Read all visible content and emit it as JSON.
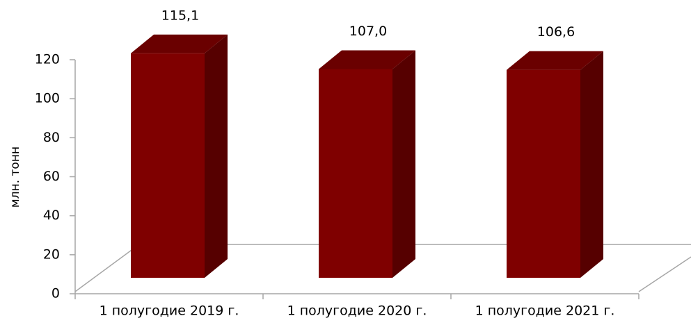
{
  "chart_data": {
    "type": "bar3d",
    "y_label": "млн. тонн",
    "categories": [
      "1 полугодие 2019 г.",
      "1 полугодие 2020 г.",
      "1 полугодие 2021 г."
    ],
    "values": [
      115.1,
      107.0,
      106.6
    ],
    "value_labels": [
      "115,1",
      "107,0",
      "106,6"
    ],
    "color": "#7f0000",
    "ylim": [
      0,
      120
    ],
    "yticks": [
      0,
      20,
      40,
      60,
      80,
      100,
      120
    ]
  }
}
